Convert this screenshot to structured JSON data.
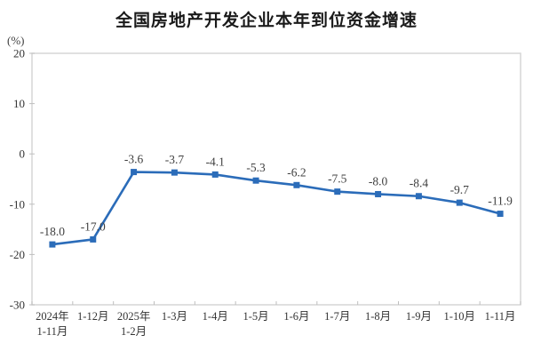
{
  "header": {
    "title": "全国房地产开发企业本年到位资金增速"
  },
  "chart_data": {
    "type": "line",
    "title": "全国房地产开发企业本年到位资金增速",
    "unit": "(%)",
    "categories": [
      "2024年\n1-11月",
      "1-12月",
      "2025年\n1-2月",
      "1-3月",
      "1-4月",
      "1-5月",
      "1-6月",
      "1-7月",
      "1-8月",
      "1-9月",
      "1-10月",
      "1-11月"
    ],
    "values": [
      -18.0,
      -17.0,
      -3.6,
      -3.7,
      -4.1,
      -5.3,
      -6.2,
      -7.5,
      -8.0,
      -8.4,
      -9.7,
      -11.9
    ],
    "data_labels": [
      "-18.0",
      "-17.0",
      "-3.6",
      "-3.7",
      "-4.1",
      "-5.3",
      "-6.2",
      "-7.5",
      "-8.0",
      "-8.4",
      "-9.7",
      "-11.9"
    ],
    "yticks": [
      20,
      10,
      0,
      -10,
      -20,
      -30
    ],
    "ylim": [
      -30,
      20
    ],
    "grid": false,
    "legend": "none",
    "marker": "square",
    "line_color": "#2b6cb9",
    "label_color": "#404040",
    "axis_line_color": "#d6d6d6",
    "tick_color": "#bfbfbf",
    "text_color": "#333333"
  }
}
